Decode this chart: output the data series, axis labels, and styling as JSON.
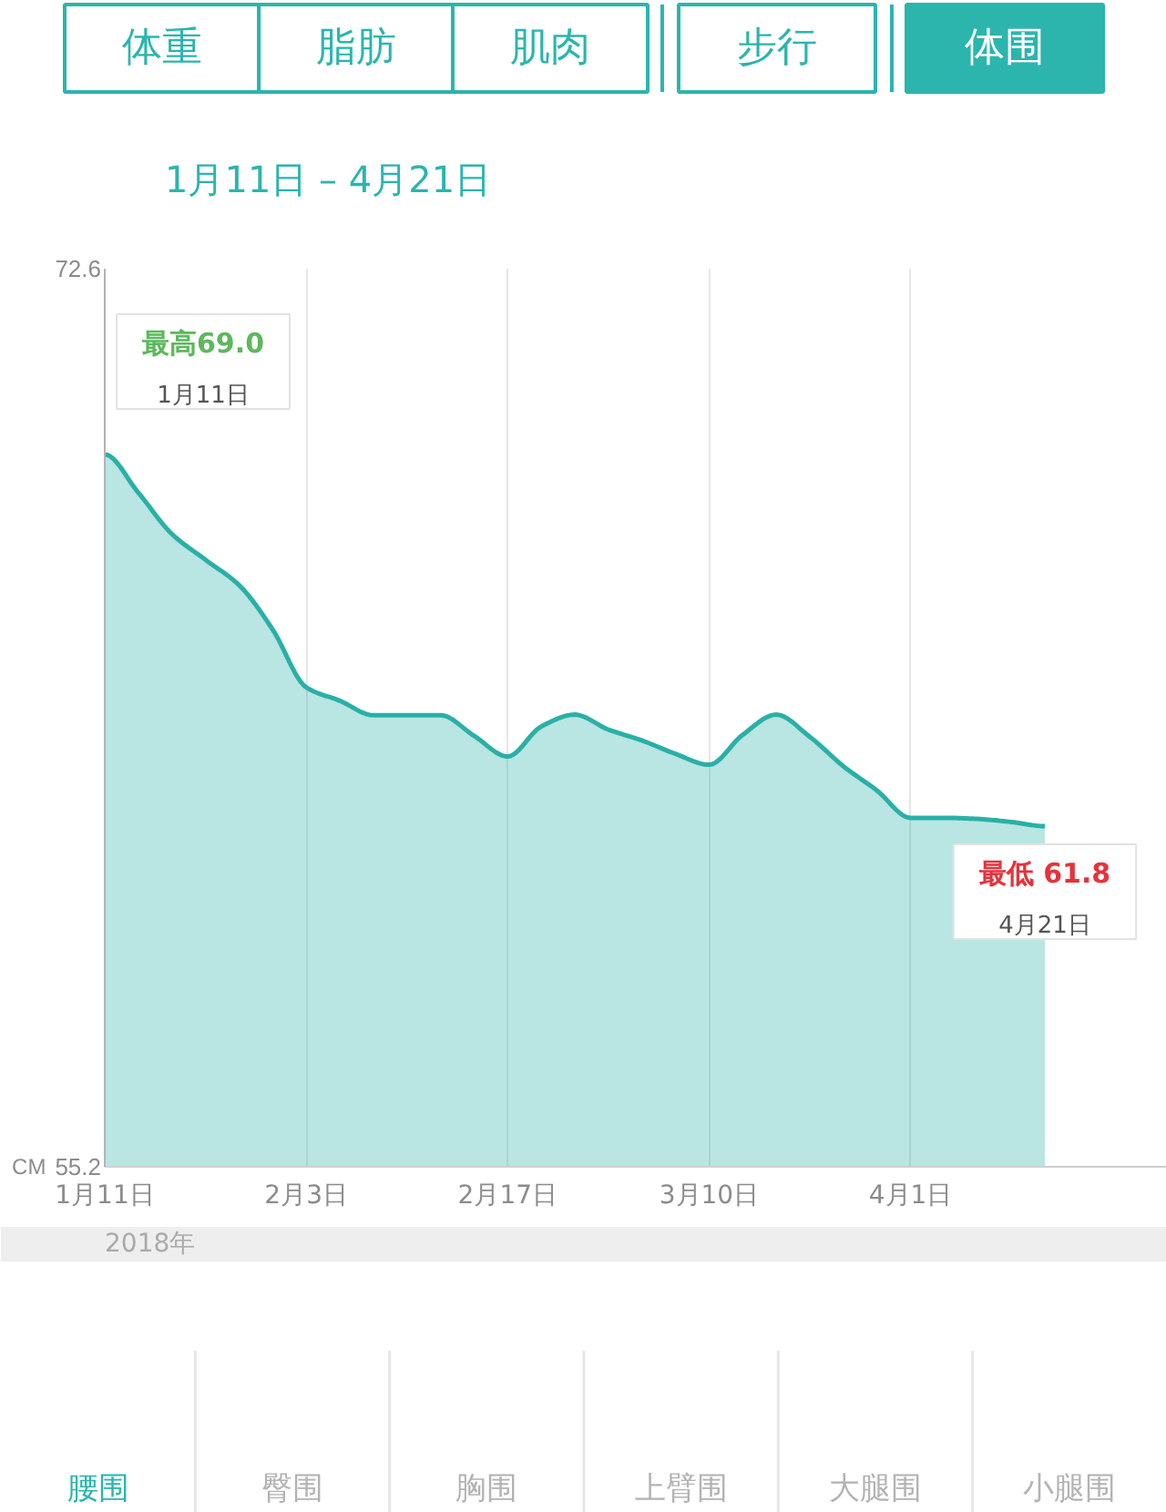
{
  "chart_data": {
    "type": "area",
    "title": "1月11日 – 4月21日",
    "xlabel": "2018年",
    "ylabel": "CM",
    "categories": [
      "1月11日",
      null,
      null,
      null,
      null,
      null,
      "2月3日",
      null,
      null,
      null,
      null,
      null,
      "2月17日",
      null,
      null,
      null,
      null,
      null,
      "3月10日",
      null,
      null,
      null,
      null,
      null,
      "4月1日",
      null,
      null,
      null,
      null
    ],
    "values": [
      69.0,
      68.26,
      67.46,
      66.96,
      66.47,
      65.61,
      64.49,
      64.23,
      63.95,
      63.95,
      63.95,
      63.55,
      63.15,
      63.73,
      63.96,
      63.67,
      63.46,
      63.2,
      62.99,
      63.57,
      63.96,
      63.53,
      62.96,
      62.49,
      61.96,
      61.96,
      61.94,
      61.88,
      61.8
    ],
    "color": "#2ab0a7",
    "value_labels": [
      "最高69.0\n1月11日",
      null,
      null,
      null,
      null,
      null,
      null,
      null,
      null,
      null,
      null,
      null,
      null,
      null,
      null,
      null,
      null,
      null,
      null,
      null,
      null,
      null,
      null,
      null,
      null,
      null,
      null,
      null,
      "最低 61.8\n4月21日"
    ],
    "ylim": [
      55.2,
      72.6
    ],
    "yticks": [
      55.2,
      72.6
    ],
    "grid": "x",
    "annotations": [
      "体重",
      "脂肪",
      "肌肉",
      "步行",
      "体围",
      "腰围",
      "臀围",
      "胸围",
      "上臂围",
      "大腿围",
      "小腿围"
    ]
  }
}
